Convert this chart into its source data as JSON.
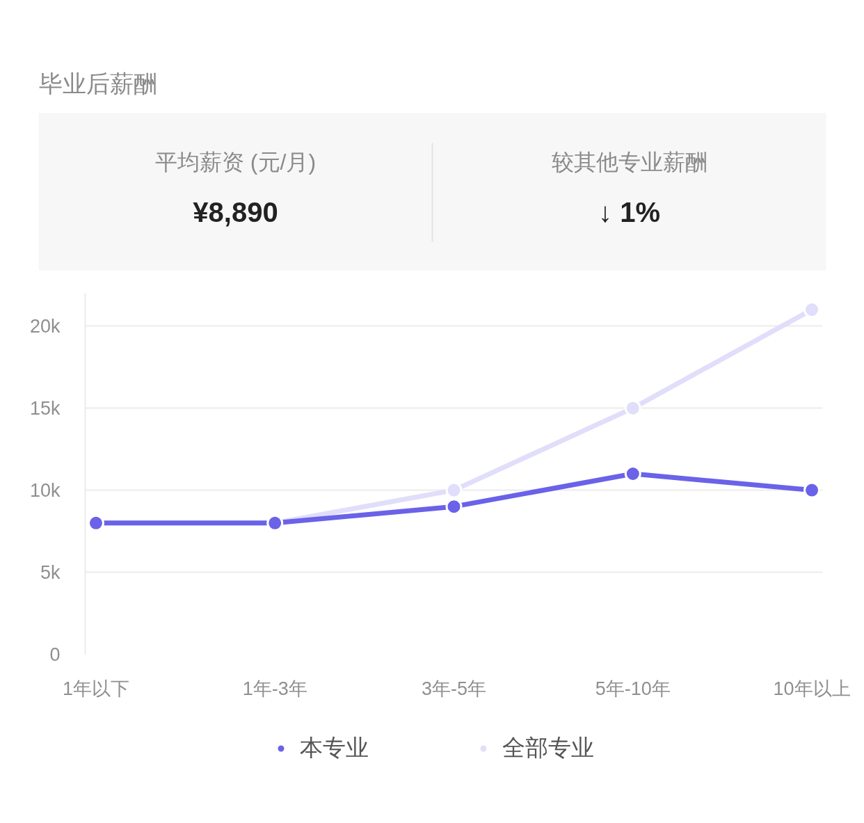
{
  "chart_data": [
    {
      "type": "other",
      "title": "毕业后薪酬",
      "annotations": [
        "平均薪资 (元/月)",
        "¥8,890",
        "较其他专业薪酬",
        "↓ 1%"
      ]
    },
    {
      "type": "line",
      "categories": [
        "1年以下",
        "1年-3年",
        "3年-5年",
        "5年-10年",
        "10年以上"
      ],
      "series": [
        {
          "name": "本专业",
          "color": "#6a62e8",
          "values": [
            8000,
            8000,
            9000,
            11000,
            10000
          ]
        },
        {
          "name": "全部专业",
          "color": "#e0defa",
          "values": [
            8000,
            8000,
            10000,
            15000,
            21000
          ]
        }
      ],
      "ylim": [
        0,
        22000
      ],
      "yticks": [
        0,
        {
          "value": 5000,
          "label": "5k"
        },
        {
          "value": 10000,
          "label": "10k"
        },
        {
          "value": 15000,
          "label": "15k"
        },
        {
          "value": 20000,
          "label": "20k"
        }
      ],
      "grid": "y",
      "legend": "bottom",
      "marker": "circle",
      "line_style": "solid"
    }
  ]
}
